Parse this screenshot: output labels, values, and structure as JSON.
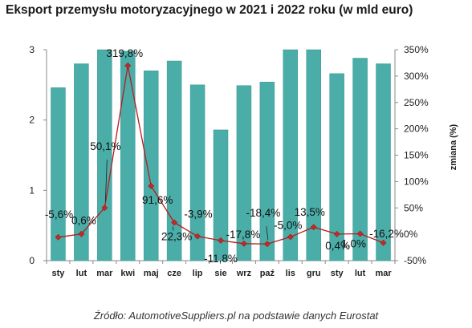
{
  "chart_data": {
    "type": "bar",
    "title": "Eksport przemysłu motoryzacyjnego w 2021 i 2022 roku (w mld euro)",
    "categories": [
      "sty",
      "lut",
      "mar",
      "kwi",
      "maj",
      "cze",
      "lip",
      "sie",
      "wrz",
      "paź",
      "lis",
      "gru",
      "sty",
      "lut",
      "mar"
    ],
    "series": [
      {
        "values": [
          2.46,
          2.8,
          3.0,
          2.98,
          2.7,
          2.84,
          2.5,
          1.86,
          2.49,
          2.54,
          3.0,
          3.0,
          2.66,
          2.88,
          2.8
        ]
      },
      {
        "type": "line",
        "axis": "right",
        "values": [
          -5.6,
          0.6,
          50.1,
          319.8,
          91.6,
          22.3,
          -3.9,
          -11.8,
          -17.8,
          -18.4,
          -5.0,
          13.5,
          0.4,
          1.0,
          -16.2
        ],
        "labels": [
          "-5,6%",
          "0,6%",
          "50,1%",
          "319,8%",
          "91,6%",
          "22,3%",
          "-3,9%",
          "-11,8%",
          "-17,8%",
          "-18,4%",
          "-5,0%",
          "13,5%",
          "0,4%",
          "1,0%",
          "-16,2%"
        ]
      }
    ],
    "ylim": [
      0,
      3
    ],
    "yticks": [
      "0",
      "1",
      "2",
      "3"
    ],
    "ylim_right": [
      -50,
      350
    ],
    "yticks_right": [
      "-50%",
      "0%",
      "50%",
      "100%",
      "150%",
      "200%",
      "250%",
      "300%",
      "350%"
    ],
    "ylabel_right": "zmiana (%)",
    "grid": false,
    "colors": {
      "bar": "#4aada8",
      "bar_edge": "#3a9792",
      "line": "#b71c1c",
      "marker": "#c62828"
    }
  },
  "source_text": "Źródło: AutomotiveSuppliers.pl na podstawie danych Eurostat"
}
